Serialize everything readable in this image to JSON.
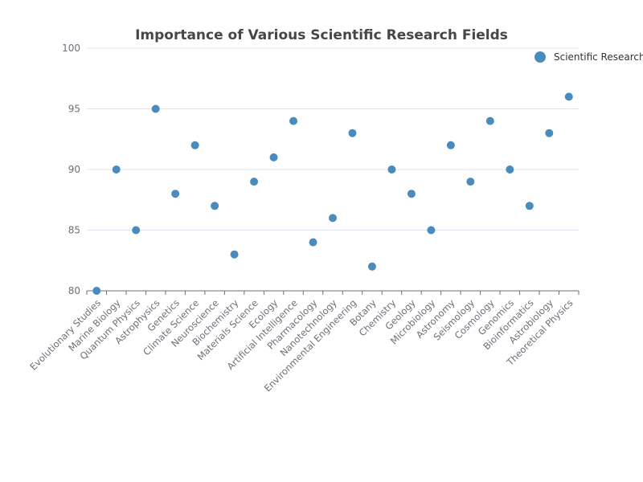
{
  "chart_data": {
    "type": "scatter",
    "title": "Importance of Various Scientific Research Fields",
    "xlabel": "",
    "ylabel": "",
    "ylim": [
      80,
      100
    ],
    "yticks": [
      "80",
      "85",
      "90",
      "95",
      "100"
    ],
    "grid": true,
    "legend_position": "top-right",
    "categories": [
      "Evolutionary Studies",
      "Marine Biology",
      "Quantum Physics",
      "Astrophysics",
      "Genetics",
      "Climate Science",
      "Neuroscience",
      "Biochemistry",
      "Materials Science",
      "Ecology",
      "Artificial Intelligence",
      "Pharmacology",
      "Nanotechnology",
      "Environmental Engineering",
      "Botany",
      "Chemistry",
      "Geology",
      "Microbiology",
      "Astronomy",
      "Seismology",
      "Cosmology",
      "Genomics",
      "Bioinformatics",
      "Astrobiology",
      "Theoretical Physics"
    ],
    "series": [
      {
        "name": "Scientific Research",
        "color": "#4a8bbd",
        "values": [
          80,
          90,
          85,
          95,
          88,
          92,
          87,
          83,
          89,
          91,
          94,
          84,
          86,
          93,
          82,
          90,
          88,
          85,
          92,
          89,
          94,
          90,
          87,
          93,
          96
        ]
      }
    ]
  }
}
